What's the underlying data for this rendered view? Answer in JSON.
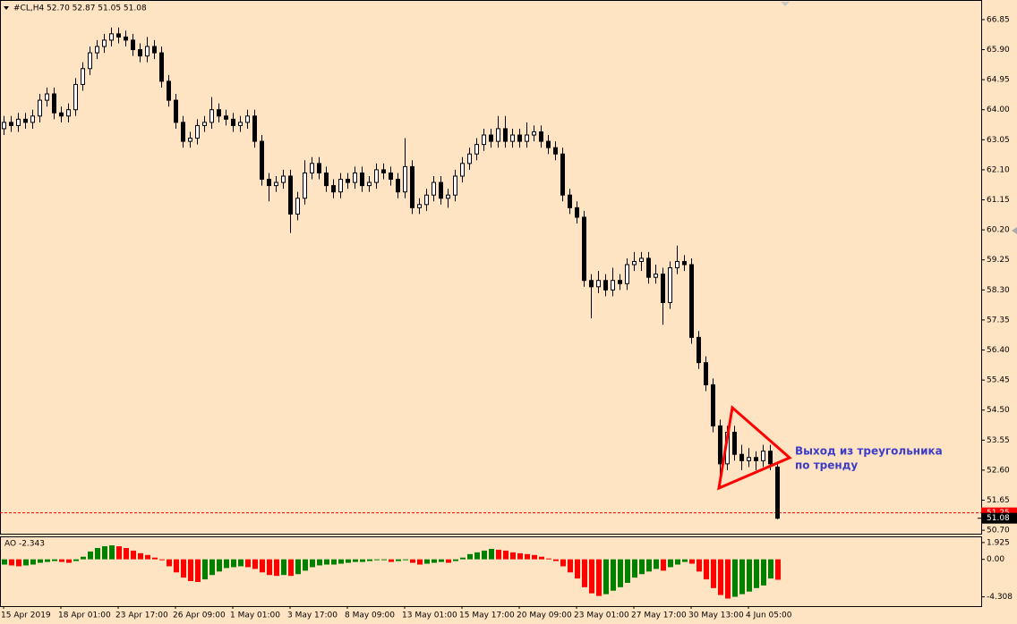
{
  "chart_data": {
    "type": "candlestick",
    "header": "#CL,H4  52.70 52.87 51.05 51.08",
    "background": "#ffe4c4",
    "up_color": "#ffffff",
    "down_color": "#000000",
    "wick_color": "#000000",
    "ylim": [
      50.59,
      67.47
    ],
    "yticks": [
      {
        "value": 66.85,
        "label": "66.85"
      },
      {
        "value": 65.9,
        "label": "65.90"
      },
      {
        "value": 64.95,
        "label": "64.95"
      },
      {
        "value": 64,
        "label": "64.00"
      },
      {
        "value": 63.05,
        "label": "63.05"
      },
      {
        "value": 62.1,
        "label": "62.10"
      },
      {
        "value": 61.15,
        "label": "61.15"
      },
      {
        "value": 60.2,
        "label": "60.20"
      },
      {
        "value": 59.25,
        "label": "59.25"
      },
      {
        "value": 58.3,
        "label": "58.30"
      },
      {
        "value": 57.35,
        "label": "57.35"
      },
      {
        "value": 56.4,
        "label": "56.40"
      },
      {
        "value": 55.45,
        "label": "55.45"
      },
      {
        "value": 54.5,
        "label": "54.50"
      },
      {
        "value": 53.55,
        "label": "53.55"
      },
      {
        "value": 52.6,
        "label": "52.60"
      },
      {
        "value": 51.65,
        "label": "51.65"
      },
      {
        "value": 50.7,
        "label": "50.70"
      }
    ],
    "price_line": {
      "value": 51.25,
      "label": "51.25",
      "color": "#ff0000"
    },
    "bid": {
      "value": 51.08,
      "label": "51.08"
    },
    "categories": [
      "15 Apr 2019",
      null,
      null,
      null,
      null,
      null,
      null,
      null,
      "18 Apr 01:00",
      null,
      null,
      null,
      null,
      null,
      null,
      null,
      "23 Apr 17:00",
      null,
      null,
      null,
      null,
      null,
      null,
      null,
      "26 Apr 09:00",
      null,
      null,
      null,
      null,
      null,
      null,
      null,
      "1 May 01:00",
      null,
      null,
      null,
      null,
      null,
      null,
      null,
      "3 May 17:00",
      null,
      null,
      null,
      null,
      null,
      null,
      null,
      "8 May 09:00",
      null,
      null,
      null,
      null,
      null,
      null,
      null,
      "13 May 01:00",
      null,
      null,
      null,
      null,
      null,
      null,
      null,
      "15 May 17:00",
      null,
      null,
      null,
      null,
      null,
      null,
      null,
      "20 May 09:00",
      null,
      null,
      null,
      null,
      null,
      null,
      null,
      "23 May 01:00",
      null,
      null,
      null,
      null,
      null,
      null,
      null,
      "27 May 17:00",
      null,
      null,
      null,
      null,
      null,
      null,
      null,
      "30 May 13:00",
      null,
      null,
      null,
      null,
      null,
      null,
      null,
      "4 Jun 05:00",
      null,
      null,
      null,
      null
    ],
    "ohlc": [
      [
        63.4,
        63.8,
        63.2,
        63.6
      ],
      [
        63.6,
        63.8,
        63.3,
        63.5
      ],
      [
        63.5,
        63.9,
        63.3,
        63.7
      ],
      [
        63.7,
        63.9,
        63.4,
        63.6
      ],
      [
        63.6,
        64.0,
        63.4,
        63.8
      ],
      [
        63.8,
        64.5,
        63.6,
        64.3
      ],
      [
        64.3,
        64.7,
        64.1,
        64.5
      ],
      [
        64.5,
        64.7,
        63.7,
        63.9
      ],
      [
        63.9,
        64.1,
        63.6,
        63.8
      ],
      [
        63.8,
        64.2,
        63.6,
        64.0
      ],
      [
        64.0,
        65.0,
        63.8,
        64.8
      ],
      [
        64.8,
        65.5,
        64.6,
        65.3
      ],
      [
        65.3,
        66.0,
        65.1,
        65.8
      ],
      [
        65.8,
        66.2,
        65.6,
        66.0
      ],
      [
        66.0,
        66.4,
        65.8,
        66.2
      ],
      [
        66.2,
        66.6,
        66.0,
        66.4
      ],
      [
        66.4,
        66.6,
        66.1,
        66.3
      ],
      [
        66.3,
        66.5,
        66.0,
        66.2
      ],
      [
        66.2,
        66.4,
        65.7,
        65.9
      ],
      [
        65.9,
        66.1,
        65.5,
        65.7
      ],
      [
        65.7,
        66.3,
        65.5,
        66.0
      ],
      [
        66.0,
        66.2,
        65.6,
        65.8
      ],
      [
        65.8,
        66.0,
        64.7,
        64.9
      ],
      [
        64.9,
        65.1,
        64.1,
        64.3
      ],
      [
        64.3,
        64.5,
        63.4,
        63.6
      ],
      [
        63.6,
        63.8,
        62.8,
        63.0
      ],
      [
        63.0,
        63.3,
        62.8,
        63.1
      ],
      [
        63.1,
        63.7,
        62.9,
        63.5
      ],
      [
        63.5,
        63.8,
        63.3,
        63.6
      ],
      [
        63.6,
        64.4,
        63.4,
        64.0
      ],
      [
        64.0,
        64.2,
        63.6,
        63.8
      ],
      [
        63.8,
        64.0,
        63.5,
        63.7
      ],
      [
        63.7,
        63.9,
        63.3,
        63.5
      ],
      [
        63.5,
        63.8,
        63.3,
        63.6
      ],
      [
        63.6,
        64.0,
        63.4,
        63.8
      ],
      [
        63.8,
        64.0,
        62.8,
        63.0
      ],
      [
        63.0,
        63.2,
        61.6,
        61.8
      ],
      [
        61.8,
        62.0,
        61.1,
        61.6
      ],
      [
        61.6,
        61.9,
        61.4,
        61.7
      ],
      [
        61.7,
        62.1,
        61.5,
        61.9
      ],
      [
        61.9,
        62.1,
        60.1,
        60.7
      ],
      [
        60.7,
        61.4,
        60.5,
        61.2
      ],
      [
        61.2,
        62.4,
        61.0,
        62.0
      ],
      [
        62.0,
        62.5,
        61.8,
        62.3
      ],
      [
        62.3,
        62.5,
        61.8,
        62.0
      ],
      [
        62.0,
        62.2,
        61.4,
        61.6
      ],
      [
        61.6,
        61.8,
        61.2,
        61.4
      ],
      [
        61.4,
        62.0,
        61.2,
        61.8
      ],
      [
        61.8,
        62.0,
        61.5,
        61.7
      ],
      [
        61.7,
        62.2,
        61.5,
        62.0
      ],
      [
        62.0,
        62.2,
        61.4,
        61.6
      ],
      [
        61.6,
        61.9,
        61.4,
        61.7
      ],
      [
        61.7,
        62.3,
        61.5,
        62.1
      ],
      [
        62.1,
        62.3,
        61.8,
        62.0
      ],
      [
        62.0,
        62.2,
        61.6,
        61.8
      ],
      [
        61.8,
        62.0,
        61.2,
        61.4
      ],
      [
        61.4,
        63.1,
        61.2,
        62.2
      ],
      [
        62.2,
        62.4,
        60.7,
        60.9
      ],
      [
        60.9,
        61.2,
        60.7,
        61.0
      ],
      [
        61.0,
        61.5,
        60.8,
        61.3
      ],
      [
        61.3,
        61.9,
        61.1,
        61.7
      ],
      [
        61.7,
        61.9,
        61.0,
        61.2
      ],
      [
        61.2,
        61.5,
        60.9,
        61.3
      ],
      [
        61.3,
        62.1,
        61.1,
        61.9
      ],
      [
        61.9,
        62.5,
        61.7,
        62.3
      ],
      [
        62.3,
        62.8,
        62.1,
        62.6
      ],
      [
        62.6,
        63.1,
        62.4,
        62.9
      ],
      [
        62.9,
        63.4,
        62.7,
        63.2
      ],
      [
        63.2,
        63.4,
        62.8,
        63.0
      ],
      [
        63.0,
        63.8,
        62.8,
        63.4
      ],
      [
        63.4,
        63.8,
        62.8,
        63.0
      ],
      [
        63.0,
        63.4,
        62.8,
        63.2
      ],
      [
        63.2,
        63.4,
        62.8,
        63.0
      ],
      [
        63.0,
        63.6,
        62.8,
        63.2
      ],
      [
        63.2,
        63.5,
        63.0,
        63.3
      ],
      [
        63.3,
        63.5,
        62.8,
        63.0
      ],
      [
        63.0,
        63.2,
        62.6,
        62.8
      ],
      [
        62.8,
        63.0,
        62.4,
        62.6
      ],
      [
        62.6,
        62.8,
        61.1,
        61.3
      ],
      [
        61.3,
        61.5,
        60.7,
        60.9
      ],
      [
        60.9,
        61.1,
        60.4,
        60.6
      ],
      [
        60.6,
        60.8,
        58.4,
        58.6
      ],
      [
        58.6,
        58.8,
        57.4,
        58.4
      ],
      [
        58.4,
        58.9,
        58.2,
        58.6
      ],
      [
        58.6,
        58.8,
        58.1,
        58.3
      ],
      [
        58.3,
        59.0,
        58.1,
        58.6
      ],
      [
        58.6,
        58.8,
        58.3,
        58.5
      ],
      [
        58.5,
        59.3,
        58.3,
        59.1
      ],
      [
        59.1,
        59.5,
        58.9,
        59.2
      ],
      [
        59.2,
        59.5,
        58.9,
        59.3
      ],
      [
        59.3,
        59.5,
        58.5,
        58.7
      ],
      [
        58.7,
        59.1,
        58.5,
        58.8
      ],
      [
        58.8,
        59.0,
        57.2,
        57.9
      ],
      [
        57.9,
        59.2,
        57.7,
        59.0
      ],
      [
        59.0,
        59.7,
        58.8,
        59.2
      ],
      [
        59.2,
        59.4,
        58.9,
        59.1
      ],
      [
        59.1,
        59.3,
        56.6,
        56.8
      ],
      [
        56.8,
        57.0,
        55.8,
        56.0
      ],
      [
        56.0,
        56.2,
        55.1,
        55.3
      ],
      [
        55.3,
        55.5,
        53.8,
        54.0
      ],
      [
        54.0,
        54.2,
        52.3,
        52.8
      ],
      [
        52.8,
        54.0,
        52.6,
        53.8
      ],
      [
        53.8,
        54.0,
        52.9,
        53.1
      ],
      [
        53.1,
        53.4,
        52.6,
        52.9
      ],
      [
        52.9,
        53.3,
        52.7,
        53.0
      ],
      [
        53.0,
        53.2,
        52.6,
        52.9
      ],
      [
        52.9,
        53.4,
        52.7,
        53.2
      ],
      [
        53.2,
        53.4,
        52.6,
        52.8
      ],
      [
        52.7,
        52.87,
        51.05,
        51.08
      ]
    ],
    "annotation": [
      "Выход из треугольника",
      "по тренду"
    ],
    "annotation_color": "#3c3cc8",
    "indicator": {
      "type": "histogram",
      "label": "AO -2.343",
      "up_color": "#008000",
      "down_color": "#ff0000",
      "ylim": [
        -5.37,
        2.53
      ],
      "yticks": [
        1.925,
        {
          "value": 0,
          "label": "0.00"
        },
        -4.308
      ],
      "values": [
        -0.6,
        -0.7,
        -0.8,
        -0.7,
        -0.6,
        -0.4,
        -0.3,
        -0.2,
        -0.3,
        -0.4,
        -0.2,
        0.3,
        0.9,
        1.3,
        1.5,
        1.6,
        1.5,
        1.3,
        1.0,
        0.7,
        0.5,
        0.2,
        -0.1,
        -0.8,
        -1.5,
        -2.1,
        -2.5,
        -2.6,
        -2.3,
        -1.8,
        -1.4,
        -1.0,
        -0.9,
        -0.8,
        -0.9,
        -1.1,
        -1.5,
        -1.8,
        -1.9,
        -1.8,
        -1.9,
        -1.7,
        -1.3,
        -0.9,
        -0.7,
        -0.6,
        -0.6,
        -0.5,
        -0.4,
        -0.3,
        -0.3,
        -0.2,
        -0.1,
        -0.1,
        -0.3,
        -0.2,
        -0.1,
        -0.4,
        -0.6,
        -0.5,
        -0.4,
        -0.3,
        -0.4,
        -0.2,
        0.2,
        0.6,
        0.8,
        1.0,
        1.2,
        1.1,
        1.0,
        0.8,
        0.7,
        0.6,
        0.5,
        0.3,
        0.1,
        -0.2,
        -0.8,
        -1.5,
        -2.2,
        -3.2,
        -3.9,
        -4.2,
        -4.0,
        -3.6,
        -3.2,
        -2.7,
        -2.1,
        -1.7,
        -1.4,
        -1.1,
        -1.3,
        -0.9,
        -0.6,
        -0.3,
        -0.5,
        -1.4,
        -2.3,
        -3.3,
        -4.1,
        -4.5,
        -4.3,
        -4.0,
        -3.7,
        -3.3,
        -3.0,
        -2.2,
        -2.343
      ]
    }
  }
}
